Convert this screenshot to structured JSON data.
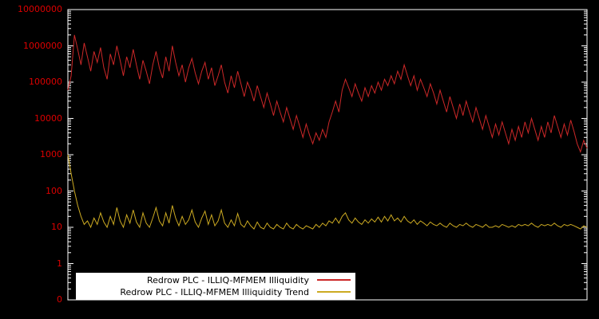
{
  "chart_data": {
    "type": "line",
    "title": "",
    "xlabel": "",
    "ylabel": "",
    "yscale": "log",
    "ylim_log10": [
      -1,
      7
    ],
    "yticks": [
      "10000000",
      "1000000",
      "100000",
      "10000",
      "1000",
      "100",
      "10",
      "1",
      "0"
    ],
    "grid": false,
    "background_color": "#000000",
    "axis_color": "#ffffff",
    "tick_label_color": "#dd0000",
    "legend_position": "bottom-inside",
    "legend_background": "#ffffff",
    "series": [
      {
        "name": "Redrow PLC - ILLIQ-MFMEM Illiquidity",
        "color": "#cc2828",
        "values": [
          60000,
          150000,
          2000000,
          800000,
          300000,
          1200000,
          500000,
          200000,
          700000,
          350000,
          900000,
          250000,
          120000,
          600000,
          300000,
          1000000,
          400000,
          150000,
          500000,
          250000,
          800000,
          300000,
          120000,
          400000,
          200000,
          90000,
          300000,
          700000,
          250000,
          130000,
          500000,
          200000,
          1000000,
          350000,
          150000,
          300000,
          100000,
          250000,
          450000,
          180000,
          90000,
          200000,
          350000,
          120000,
          250000,
          80000,
          150000,
          300000,
          100000,
          50000,
          150000,
          70000,
          200000,
          90000,
          40000,
          100000,
          60000,
          30000,
          80000,
          40000,
          20000,
          50000,
          25000,
          12000,
          30000,
          15000,
          8000,
          20000,
          10000,
          5000,
          12000,
          6000,
          3000,
          7000,
          3500,
          2000,
          4000,
          2500,
          5000,
          3000,
          8000,
          15000,
          30000,
          15000,
          60000,
          120000,
          70000,
          40000,
          90000,
          50000,
          30000,
          70000,
          40000,
          80000,
          50000,
          100000,
          60000,
          120000,
          80000,
          150000,
          90000,
          200000,
          120000,
          300000,
          150000,
          80000,
          150000,
          60000,
          120000,
          70000,
          40000,
          90000,
          50000,
          25000,
          60000,
          30000,
          15000,
          40000,
          20000,
          10000,
          25000,
          12000,
          30000,
          15000,
          8000,
          20000,
          10000,
          5000,
          12000,
          6000,
          3000,
          7000,
          3500,
          8000,
          4000,
          2000,
          5000,
          2500,
          6000,
          3000,
          8000,
          4000,
          10000,
          5000,
          2500,
          6000,
          3000,
          8000,
          4000,
          12000,
          6000,
          3000,
          7000,
          3500,
          9000,
          4500,
          2000,
          1200,
          2500,
          1500
        ]
      },
      {
        "name": "Redrow PLC - ILLIQ-MFMEM Illiquidity Trend",
        "color": "#ccaa22",
        "values": [
          1000,
          300,
          100,
          40,
          20,
          12,
          15,
          10,
          18,
          12,
          25,
          14,
          10,
          20,
          12,
          35,
          15,
          10,
          22,
          13,
          30,
          14,
          10,
          25,
          13,
          10,
          18,
          35,
          15,
          11,
          25,
          13,
          40,
          18,
          11,
          20,
          12,
          16,
          30,
          14,
          10,
          18,
          28,
          12,
          22,
          11,
          15,
          30,
          13,
          10,
          16,
          11,
          24,
          12,
          10,
          15,
          11,
          9,
          14,
          10,
          9,
          13,
          10,
          9,
          12,
          10,
          9,
          13,
          10,
          9,
          12,
          10,
          9,
          11,
          10,
          9,
          12,
          10,
          13,
          11,
          15,
          13,
          18,
          13,
          20,
          25,
          16,
          13,
          18,
          14,
          12,
          16,
          13,
          17,
          14,
          19,
          14,
          20,
          15,
          22,
          15,
          18,
          14,
          20,
          15,
          13,
          16,
          12,
          15,
          13,
          11,
          14,
          12,
          11,
          13,
          11,
          10,
          13,
          11,
          10,
          12,
          11,
          13,
          11,
          10,
          12,
          11,
          10,
          12,
          10,
          10,
          11,
          10,
          12,
          11,
          10,
          11,
          10,
          12,
          11,
          12,
          11,
          13,
          11,
          10,
          12,
          11,
          12,
          11,
          13,
          11,
          10,
          12,
          11,
          12,
          11,
          10,
          9,
          11,
          10
        ]
      }
    ]
  }
}
